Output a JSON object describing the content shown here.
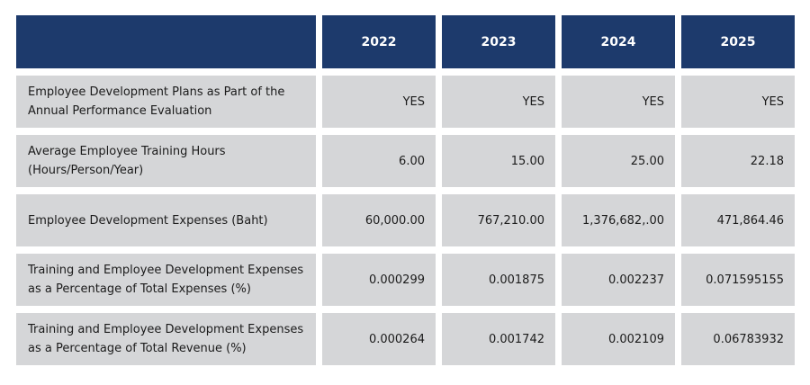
{
  "table": {
    "header": {
      "corner": "",
      "years": [
        "2022",
        "2023",
        "2024",
        "2025"
      ]
    },
    "rows": [
      {
        "label": "Employee Development Plans as Part of the Annual Performance Evaluation",
        "values": [
          "YES",
          "YES",
          "YES",
          "YES"
        ]
      },
      {
        "label": "Average Employee Training Hours (Hours/Person/Year)",
        "values": [
          "6.00",
          "15.00",
          "25.00",
          "22.18"
        ]
      },
      {
        "label": "Employee Development Expenses (Baht)",
        "values": [
          "60,000.00",
          "767,210.00",
          "1,376,682,.00",
          "471,864.46"
        ]
      },
      {
        "label": "Training and Employee Development Expenses as a Percentage of Total Expenses (%)",
        "values": [
          "0.000299",
          "0.001875",
          "0.002237",
          "0.071595155"
        ]
      },
      {
        "label": "Training and Employee Development Expenses as a Percentage of Total Revenue (%)",
        "values": [
          "0.000264",
          "0.001742",
          "0.002109",
          "0.06783932"
        ]
      }
    ]
  },
  "colors": {
    "header_bg": "#1d3a6c",
    "header_text": "#ffffff",
    "cell_bg": "#d5d6d8",
    "cell_text": "#1b1b1b"
  }
}
